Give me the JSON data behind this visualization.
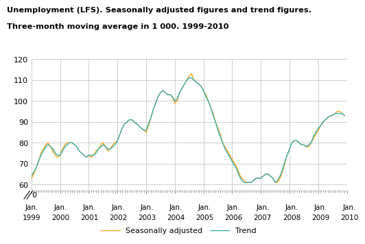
{
  "title_line1": "Unemployment (LFS). Seasonally adjusted figures and trend figures.",
  "title_line2": "Three-month moving average in 1 000. 1999-2010",
  "seasonally_adjusted": [
    63,
    65,
    68,
    71,
    75,
    77,
    79,
    80,
    78,
    76,
    74,
    73,
    74,
    77,
    79,
    80,
    80,
    80,
    79,
    78,
    76,
    75,
    74,
    73,
    74,
    73,
    74,
    76,
    77,
    79,
    80,
    78,
    76,
    77,
    79,
    80,
    81,
    84,
    87,
    89,
    90,
    91,
    91,
    90,
    89,
    88,
    87,
    86,
    85,
    88,
    92,
    96,
    99,
    102,
    104,
    105,
    104,
    103,
    103,
    102,
    99,
    100,
    104,
    106,
    108,
    110,
    112,
    113,
    110,
    109,
    108,
    107,
    105,
    103,
    100,
    97,
    94,
    90,
    87,
    84,
    80,
    78,
    76,
    74,
    72,
    70,
    68,
    65,
    63,
    62,
    61,
    61,
    61,
    62,
    63,
    63,
    63,
    64,
    65,
    65,
    64,
    63,
    61,
    61,
    63,
    66,
    70,
    74,
    77,
    80,
    81,
    81,
    80,
    79,
    79,
    78,
    78,
    80,
    82,
    84,
    86,
    88,
    90,
    91,
    92,
    93,
    93,
    94,
    95,
    95,
    94,
    93
  ],
  "trend": [
    64,
    66,
    68,
    71,
    74,
    76,
    78,
    79,
    78,
    77,
    75,
    74,
    74,
    76,
    78,
    79,
    80,
    80,
    79,
    78,
    76,
    75,
    74,
    73,
    74,
    74,
    74,
    75,
    77,
    78,
    79,
    78,
    77,
    77,
    78,
    79,
    81,
    84,
    87,
    89,
    90,
    91,
    91,
    90,
    89,
    88,
    87,
    86,
    86,
    89,
    92,
    96,
    99,
    102,
    104,
    105,
    104,
    103,
    103,
    102,
    100,
    101,
    104,
    106,
    108,
    110,
    111,
    111,
    110,
    109,
    108,
    107,
    105,
    102,
    100,
    97,
    93,
    90,
    86,
    83,
    80,
    77,
    75,
    73,
    71,
    69,
    67,
    64,
    62,
    61,
    61,
    61,
    61,
    62,
    63,
    63,
    63,
    64,
    65,
    65,
    64,
    63,
    61,
    62,
    64,
    67,
    71,
    74,
    77,
    80,
    81,
    81,
    80,
    79,
    79,
    78,
    79,
    80,
    83,
    85,
    87,
    88,
    90,
    91,
    92,
    93,
    93,
    94,
    94,
    94,
    94,
    93
  ],
  "sa_color": "#F5A623",
  "trend_color": "#3AAFA9",
  "ylim_main": [
    57,
    120
  ],
  "ylim_break": [
    0,
    5
  ],
  "yticks": [
    60,
    70,
    80,
    90,
    100,
    110,
    120
  ],
  "start_year": 1999,
  "end_year": 2010,
  "xtick_years": [
    1999,
    2000,
    2001,
    2002,
    2003,
    2004,
    2005,
    2006,
    2007,
    2008,
    2009,
    2010
  ],
  "legend_sa": "Seasonally adjusted",
  "legend_trend": "Trend",
  "grid_color": "#cccccc",
  "grid_linewidth": 0.7
}
